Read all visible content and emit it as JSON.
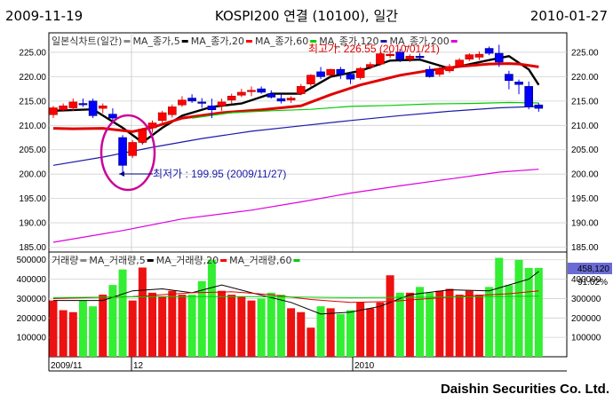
{
  "header": {
    "start_date": "2009-11-19",
    "title": "KOSPI200 연결 (10100), 일간",
    "end_date": "2010-01-27"
  },
  "footer": {
    "brand": "Daishin Securities Co. Ltd."
  },
  "price_panel": {
    "legend": [
      {
        "label": "일본식차트(일간)",
        "color": "#888888"
      },
      {
        "label": "MA_종가,5",
        "color": "#000000"
      },
      {
        "label": "MA_종가,20",
        "color": "#ff0000"
      },
      {
        "label": "MA_종가,60",
        "color": "#00cc00"
      },
      {
        "label": "MA_종가,120",
        "color": "#1a1aa8"
      },
      {
        "label": "MA_종가,200",
        "color": "#dd00dd"
      }
    ],
    "yticks": [
      "225.00",
      "220.00",
      "215.00",
      "210.00",
      "205.00",
      "200.00",
      "195.00",
      "190.00",
      "185.00"
    ],
    "annotations": {
      "high": "최고가: 226.55 (2010/01/21)",
      "low": "최저가 : 199.95 (2009/11/27)"
    }
  },
  "volume_panel": {
    "legend": [
      {
        "label": "거래량",
        "color": "#888888"
      },
      {
        "label": "MA_거래량,5",
        "color": "#000000"
      },
      {
        "label": "MA_거래량,20",
        "color": "#ff0000"
      },
      {
        "label": "MA_거래량,60",
        "color": "#00cc00"
      }
    ],
    "yticks": [
      "500000",
      "400000",
      "300000",
      "200000",
      "100000"
    ],
    "yticks_right": [
      "400000",
      "300000",
      "200000",
      "100000"
    ],
    "last_value_badge": "458,120",
    "percent": "91.02%"
  },
  "xaxis": {
    "labels": [
      "2009/11",
      "12",
      "2010"
    ]
  },
  "chart_data": {
    "type": "candlestick",
    "title": "KOSPI200 연결 (10100), 일간",
    "ylim": [
      184,
      229
    ],
    "volume_ylim": [
      0,
      540000
    ],
    "candles": [
      {
        "o": 212.2,
        "h": 214.0,
        "l": 211.5,
        "c": 213.6,
        "v": 290000
      },
      {
        "o": 213.2,
        "h": 214.5,
        "l": 212.8,
        "c": 214.0,
        "v": 240000
      },
      {
        "o": 213.6,
        "h": 215.5,
        "l": 213.0,
        "c": 214.8,
        "v": 230000
      },
      {
        "o": 214.5,
        "h": 215.5,
        "l": 213.8,
        "c": 214.3,
        "v": 290000
      },
      {
        "o": 215.0,
        "h": 215.5,
        "l": 211.5,
        "c": 212.0,
        "v": 260000
      },
      {
        "o": 213.5,
        "h": 214.5,
        "l": 212.5,
        "c": 214.0,
        "v": 320000
      },
      {
        "o": 212.3,
        "h": 213.5,
        "l": 210.8,
        "c": 211.5,
        "v": 370000
      },
      {
        "o": 207.5,
        "h": 208.0,
        "l": 199.95,
        "c": 201.8,
        "v": 450000
      },
      {
        "o": 203.8,
        "h": 207.0,
        "l": 203.3,
        "c": 206.5,
        "v": 290000
      },
      {
        "o": 206.5,
        "h": 209.5,
        "l": 206.0,
        "c": 209.0,
        "v": 460000
      },
      {
        "o": 209.5,
        "h": 211.0,
        "l": 208.5,
        "c": 210.5,
        "v": 330000
      },
      {
        "o": 211.0,
        "h": 213.0,
        "l": 210.5,
        "c": 212.6,
        "v": 310000
      },
      {
        "o": 212.2,
        "h": 214.3,
        "l": 211.6,
        "c": 213.8,
        "v": 340000
      },
      {
        "o": 214.2,
        "h": 216.0,
        "l": 213.8,
        "c": 215.2,
        "v": 320000
      },
      {
        "o": 215.6,
        "h": 216.4,
        "l": 214.6,
        "c": 215.0,
        "v": 320000
      },
      {
        "o": 214.8,
        "h": 215.6,
        "l": 213.6,
        "c": 214.6,
        "v": 390000
      },
      {
        "o": 214.0,
        "h": 215.5,
        "l": 211.5,
        "c": 213.2,
        "v": 500000
      },
      {
        "o": 214.0,
        "h": 215.5,
        "l": 213.0,
        "c": 214.8,
        "v": 340000
      },
      {
        "o": 215.2,
        "h": 216.5,
        "l": 214.5,
        "c": 216.0,
        "v": 320000
      },
      {
        "o": 216.2,
        "h": 217.5,
        "l": 215.8,
        "c": 216.8,
        "v": 310000
      },
      {
        "o": 217.0,
        "h": 218.0,
        "l": 216.0,
        "c": 217.2,
        "v": 290000
      },
      {
        "o": 217.5,
        "h": 218.0,
        "l": 216.5,
        "c": 216.8,
        "v": 300000
      },
      {
        "o": 216.5,
        "h": 217.2,
        "l": 215.5,
        "c": 215.8,
        "v": 330000
      },
      {
        "o": 215.5,
        "h": 216.5,
        "l": 214.5,
        "c": 215.0,
        "v": 320000
      },
      {
        "o": 215.2,
        "h": 216.0,
        "l": 214.6,
        "c": 215.6,
        "v": 250000
      },
      {
        "o": 216.5,
        "h": 218.5,
        "l": 216.2,
        "c": 218.0,
        "v": 230000
      },
      {
        "o": 218.5,
        "h": 220.5,
        "l": 218.0,
        "c": 220.3,
        "v": 150000
      },
      {
        "o": 221.0,
        "h": 222.0,
        "l": 219.5,
        "c": 220.0,
        "v": 260000
      },
      {
        "o": 220.3,
        "h": 221.6,
        "l": 220.0,
        "c": 221.5,
        "v": 250000
      },
      {
        "o": 221.5,
        "h": 222.0,
        "l": 219.5,
        "c": 220.5,
        "v": 220000
      },
      {
        "o": 220.5,
        "h": 221.0,
        "l": 218.5,
        "c": 219.5,
        "v": 240000
      },
      {
        "o": 219.8,
        "h": 222.0,
        "l": 219.4,
        "c": 221.7,
        "v": 280000
      },
      {
        "o": 222.0,
        "h": 223.0,
        "l": 221.5,
        "c": 222.5,
        "v": 250000
      },
      {
        "o": 222.6,
        "h": 225.0,
        "l": 222.2,
        "c": 224.7,
        "v": 280000
      },
      {
        "o": 224.3,
        "h": 225.2,
        "l": 223.8,
        "c": 224.6,
        "v": 420000
      },
      {
        "o": 225.0,
        "h": 225.7,
        "l": 223.0,
        "c": 223.6,
        "v": 330000
      },
      {
        "o": 223.6,
        "h": 224.6,
        "l": 223.0,
        "c": 224.2,
        "v": 330000
      },
      {
        "o": 224.2,
        "h": 224.8,
        "l": 223.5,
        "c": 223.9,
        "v": 360000
      },
      {
        "o": 221.5,
        "h": 222.2,
        "l": 219.8,
        "c": 220.0,
        "v": 330000
      },
      {
        "o": 220.5,
        "h": 222.0,
        "l": 220.0,
        "c": 221.6,
        "v": 340000
      },
      {
        "o": 221.2,
        "h": 222.6,
        "l": 220.8,
        "c": 222.1,
        "v": 350000
      },
      {
        "o": 222.2,
        "h": 223.8,
        "l": 221.8,
        "c": 223.4,
        "v": 320000
      },
      {
        "o": 223.6,
        "h": 224.8,
        "l": 223.2,
        "c": 224.5,
        "v": 340000
      },
      {
        "o": 224.0,
        "h": 225.2,
        "l": 223.4,
        "c": 224.6,
        "v": 320000
      },
      {
        "o": 225.8,
        "h": 226.2,
        "l": 224.4,
        "c": 224.8,
        "v": 360000
      },
      {
        "o": 224.8,
        "h": 226.55,
        "l": 222.0,
        "c": 223.0,
        "v": 510000
      },
      {
        "o": 220.5,
        "h": 221.2,
        "l": 217.4,
        "c": 219.2,
        "v": 370000
      },
      {
        "o": 218.9,
        "h": 219.4,
        "l": 216.4,
        "c": 218.4,
        "v": 500000
      },
      {
        "o": 218.0,
        "h": 219.0,
        "l": 213.3,
        "c": 213.8,
        "v": 458120
      },
      {
        "o": 214.2,
        "h": 214.6,
        "l": 212.8,
        "c": 213.5,
        "v": 458120
      }
    ],
    "last_candle_volume_color": "green",
    "ma": {
      "price": [
        {
          "name": "MA_종가,5",
          "color": "#000000",
          "points": [
            [
              0,
              213.0
            ],
            [
              4,
              213.3
            ],
            [
              7,
              209.5
            ],
            [
              9,
              206.5
            ],
            [
              11,
              209.5
            ],
            [
              13,
              212.0
            ],
            [
              16,
              213.8
            ],
            [
              19,
              214.5
            ],
            [
              22,
              216.5
            ],
            [
              25,
              216.5
            ],
            [
              28,
              220.0
            ],
            [
              31,
              221.2
            ],
            [
              34,
              223.3
            ],
            [
              37,
              223.5
            ],
            [
              40,
              221.7
            ],
            [
              44,
              223.4
            ],
            [
              46,
              224.2
            ],
            [
              48,
              221.5
            ],
            [
              49,
              218.3
            ]
          ]
        },
        {
          "name": "MA_종가,20",
          "color": "#e00000",
          "points": [
            [
              0,
              209.4
            ],
            [
              2,
              209.3
            ],
            [
              5,
              209.4
            ],
            [
              8,
              208.7
            ],
            [
              10,
              209.6
            ],
            [
              13,
              211.5
            ],
            [
              17,
              212.6
            ],
            [
              21,
              213.2
            ],
            [
              25,
              214.0
            ],
            [
              28,
              216.3
            ],
            [
              31,
              218.3
            ],
            [
              35,
              220.3
            ],
            [
              38,
              221.3
            ],
            [
              41,
              222.1
            ],
            [
              44,
              222.6
            ],
            [
              46,
              222.7
            ],
            [
              47,
              222.6
            ],
            [
              49,
              222.0
            ]
          ]
        },
        {
          "name": "MA_종가,60",
          "color": "#00cc00",
          "points": [
            [
              14,
              211.5
            ],
            [
              18,
              212.6
            ],
            [
              22,
              213.0
            ],
            [
              26,
              213.3
            ],
            [
              30,
              213.9
            ],
            [
              34,
              214.1
            ],
            [
              38,
              214.4
            ],
            [
              42,
              214.5
            ],
            [
              46,
              214.7
            ],
            [
              49,
              214.6
            ]
          ]
        },
        {
          "name": "MA_종가,120",
          "color": "#1a1aa8",
          "points": [
            [
              0,
              201.8
            ],
            [
              5,
              203.5
            ],
            [
              10,
              205.5
            ],
            [
              15,
              207.3
            ],
            [
              20,
              208.8
            ],
            [
              25,
              209.9
            ],
            [
              30,
              211.0
            ],
            [
              35,
              212.0
            ],
            [
              40,
              212.9
            ],
            [
              45,
              213.6
            ],
            [
              49,
              213.9
            ]
          ]
        },
        {
          "name": "MA_종가,200",
          "color": "#dd00dd",
          "points": [
            [
              0,
              186.0
            ],
            [
              7,
              188.4
            ],
            [
              13,
              190.8
            ],
            [
              20,
              192.6
            ],
            [
              25,
              194.3
            ],
            [
              30,
              196.1
            ],
            [
              35,
              197.6
            ],
            [
              40,
              199.0
            ],
            [
              45,
              200.4
            ],
            [
              49,
              201.0
            ]
          ]
        }
      ],
      "volume": [
        {
          "name": "MA_거래량,5",
          "color": "#000000",
          "points": [
            [
              0,
              290000
            ],
            [
              5,
              290000
            ],
            [
              8,
              340000
            ],
            [
              11,
              350000
            ],
            [
              14,
              330000
            ],
            [
              17,
              370000
            ],
            [
              20,
              330000
            ],
            [
              24,
              280000
            ],
            [
              27,
              220000
            ],
            [
              30,
              230000
            ],
            [
              33,
              260000
            ],
            [
              36,
              320000
            ],
            [
              40,
              345000
            ],
            [
              44,
              340000
            ],
            [
              46,
              370000
            ],
            [
              48,
              400000
            ],
            [
              49,
              440000
            ]
          ]
        },
        {
          "name": "MA_거래량,20",
          "color": "#e00000",
          "points": [
            [
              0,
              300000
            ],
            [
              8,
              310000
            ],
            [
              14,
              330000
            ],
            [
              18,
              335000
            ],
            [
              22,
              320000
            ],
            [
              26,
              295000
            ],
            [
              30,
              280000
            ],
            [
              34,
              285000
            ],
            [
              38,
              300000
            ],
            [
              42,
              315000
            ],
            [
              46,
              325000
            ],
            [
              49,
              340000
            ]
          ]
        },
        {
          "name": "MA_거래량,60",
          "color": "#00cc00",
          "points": [
            [
              0,
              305000
            ],
            [
              10,
              310000
            ],
            [
              20,
              310000
            ],
            [
              30,
              305000
            ],
            [
              40,
              308000
            ],
            [
              49,
              312000
            ]
          ]
        }
      ]
    }
  }
}
